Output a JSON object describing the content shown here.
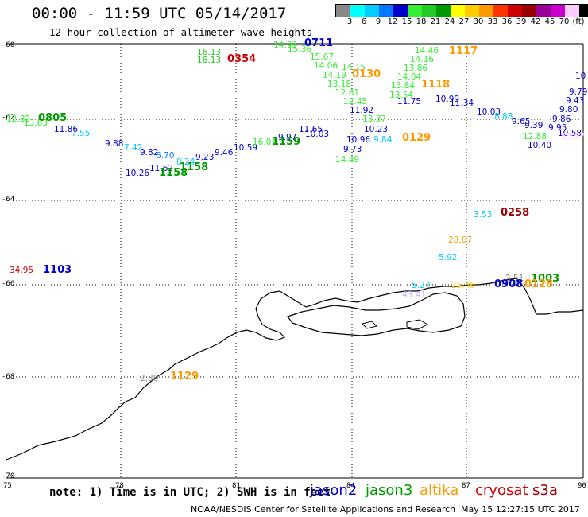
{
  "header": {
    "title": "00:00 - 11:59 UTC 05/14/2017",
    "subtitle": "12 hour collection of altimeter wave heights"
  },
  "colorscale": {
    "colors": [
      "#888888",
      "#00ffff",
      "#00ccff",
      "#0077ff",
      "#0000cc",
      "#33ee33",
      "#22cc22",
      "#009900",
      "#ffff00",
      "#ffcc00",
      "#ff9900",
      "#ff3300",
      "#cc0000",
      "#990000",
      "#990099",
      "#cc00cc",
      "#ffccff",
      "#000000"
    ],
    "labels": [
      "3",
      "6",
      "9",
      "12",
      "15",
      "18",
      "21",
      "24",
      "27",
      "30",
      "33",
      "36",
      "39",
      "42",
      "45",
      "70",
      "(ft)"
    ]
  },
  "axes": {
    "lon_labels": [
      "75",
      "78",
      "81",
      "84",
      "87",
      "90"
    ],
    "lat_labels": [
      "-60",
      "-62",
      "-64",
      "-66",
      "-68",
      "-70"
    ]
  },
  "footer": {
    "note": "note: 1) Time is in UTC; 2) SWH is in feet",
    "credit": "NOAA/NESDIS Center for Satellite Applications and Research",
    "timestamp": "May 15 12:27:15 UTC 2017"
  },
  "legend": [
    {
      "name": "jason2",
      "color": "#0000cc"
    },
    {
      "name": "jason3",
      "color": "#009900"
    },
    {
      "name": "altika",
      "color": "#ff9900"
    },
    {
      "name": "cryosat",
      "color": "#cc0000"
    },
    {
      "name": "s3a",
      "color": "#990000"
    }
  ],
  "time_labels": [
    {
      "text": "0805",
      "color": "#009900"
    },
    {
      "text": "0354",
      "color": "#cc0000"
    },
    {
      "text": "0711",
      "color": "#0000cc"
    },
    {
      "text": "1117",
      "color": "#ff9900"
    },
    {
      "text": "0130",
      "color": "#ff9900"
    },
    {
      "text": "1118",
      "color": "#ff9900"
    },
    {
      "text": "0129",
      "color": "#ff9900"
    },
    {
      "text": "1158",
      "color": "#009900"
    },
    {
      "text": "1158",
      "color": "#009900"
    },
    {
      "text": "1159",
      "color": "#009900"
    },
    {
      "text": "1103",
      "color": "#0000cc"
    },
    {
      "text": "0258",
      "color": "#990000"
    },
    {
      "text": "0908",
      "color": "#0000cc"
    },
    {
      "text": "1003",
      "color": "#009900"
    },
    {
      "text": "0128",
      "color": "#ff9900"
    },
    {
      "text": "1129",
      "color": "#ff9900"
    }
  ],
  "wave_labels": [
    {
      "text": "12.82",
      "color": "#33ee33"
    },
    {
      "text": "13.63",
      "color": "#33ee33"
    },
    {
      "text": "11.86",
      "color": "#0000cc"
    },
    {
      "text": "7.55",
      "color": "#00ccff"
    },
    {
      "text": "9.88",
      "color": "#0000cc"
    },
    {
      "text": "7.42",
      "color": "#00ccff"
    },
    {
      "text": "9.82",
      "color": "#0000cc"
    },
    {
      "text": "6.70",
      "color": "#0077ff"
    },
    {
      "text": "10.26",
      "color": "#0000cc"
    },
    {
      "text": "11.62",
      "color": "#0000cc"
    },
    {
      "text": "8.24",
      "color": "#00ccff"
    },
    {
      "text": "9.23",
      "color": "#0000cc"
    },
    {
      "text": "9.46",
      "color": "#0000cc"
    },
    {
      "text": "10.59",
      "color": "#0000cc"
    },
    {
      "text": "16.13",
      "color": "#22cc22"
    },
    {
      "text": "16.13",
      "color": "#22cc22"
    },
    {
      "text": "14.93",
      "color": "#33ee33"
    },
    {
      "text": "15.36",
      "color": "#33ee33"
    },
    {
      "text": "15.67",
      "color": "#33ee33"
    },
    {
      "text": "14.06",
      "color": "#33ee33"
    },
    {
      "text": "14.15",
      "color": "#33ee33"
    },
    {
      "text": "14.19",
      "color": "#33ee33"
    },
    {
      "text": "13.18",
      "color": "#33ee33"
    },
    {
      "text": "12.81",
      "color": "#33ee33"
    },
    {
      "text": "12.45",
      "color": "#33ee33"
    },
    {
      "text": "14.46",
      "color": "#33ee33"
    },
    {
      "text": "14.16",
      "color": "#33ee33"
    },
    {
      "text": "13.86",
      "color": "#33ee33"
    },
    {
      "text": "14.04",
      "color": "#33ee33"
    },
    {
      "text": "13.84",
      "color": "#33ee33"
    },
    {
      "text": "13.54",
      "color": "#33ee33"
    },
    {
      "text": "11.75",
      "color": "#0000cc"
    },
    {
      "text": "10.99",
      "color": "#0000cc"
    },
    {
      "text": "11.34",
      "color": "#0000cc"
    },
    {
      "text": "11.92",
      "color": "#0000cc"
    },
    {
      "text": "10.96",
      "color": "#0000cc"
    },
    {
      "text": "10.23",
      "color": "#0000cc"
    },
    {
      "text": "9.84",
      "color": "#00ccff"
    },
    {
      "text": "9.73",
      "color": "#0000cc"
    },
    {
      "text": "14.49",
      "color": "#33ee33"
    },
    {
      "text": "11.65",
      "color": "#0000cc"
    },
    {
      "text": "10.03",
      "color": "#0000cc"
    },
    {
      "text": "8.88",
      "color": "#00ccff"
    },
    {
      "text": "9.65",
      "color": "#0000cc"
    },
    {
      "text": "9.39",
      "color": "#0000cc"
    },
    {
      "text": "9.86",
      "color": "#0000cc"
    },
    {
      "text": "9.80",
      "color": "#0000cc"
    },
    {
      "text": "9.43",
      "color": "#0000cc"
    },
    {
      "text": "9.79",
      "color": "#0000cc"
    },
    {
      "text": "10",
      "color": "#0000cc"
    },
    {
      "text": "9.95",
      "color": "#0000cc"
    },
    {
      "text": "10.58",
      "color": "#0000cc"
    },
    {
      "text": "12.88",
      "color": "#33ee33"
    },
    {
      "text": "10.40",
      "color": "#0000cc"
    },
    {
      "text": "55.97",
      "color": "#ffccff"
    },
    {
      "text": "34.95",
      "color": "#cc0000"
    },
    {
      "text": "3.53",
      "color": "#00ccff"
    },
    {
      "text": "28.67",
      "color": "#ff9900"
    },
    {
      "text": "5.92",
      "color": "#00ccff"
    },
    {
      "text": "5.27",
      "color": "#00ccff"
    },
    {
      "text": "43.41",
      "color": "#ccaaff"
    },
    {
      "text": "25.46",
      "color": "#ffcc00"
    },
    {
      "text": "2.51",
      "color": "#888888"
    },
    {
      "text": "2.80",
      "color": "#888888"
    },
    {
      "text": "16.01",
      "color": "#33ee33"
    },
    {
      "text": "9.97",
      "color": "#0000cc"
    },
    {
      "text": "10.03",
      "color": "#0000cc"
    },
    {
      "text": "13.37",
      "color": "#33ee33"
    }
  ]
}
